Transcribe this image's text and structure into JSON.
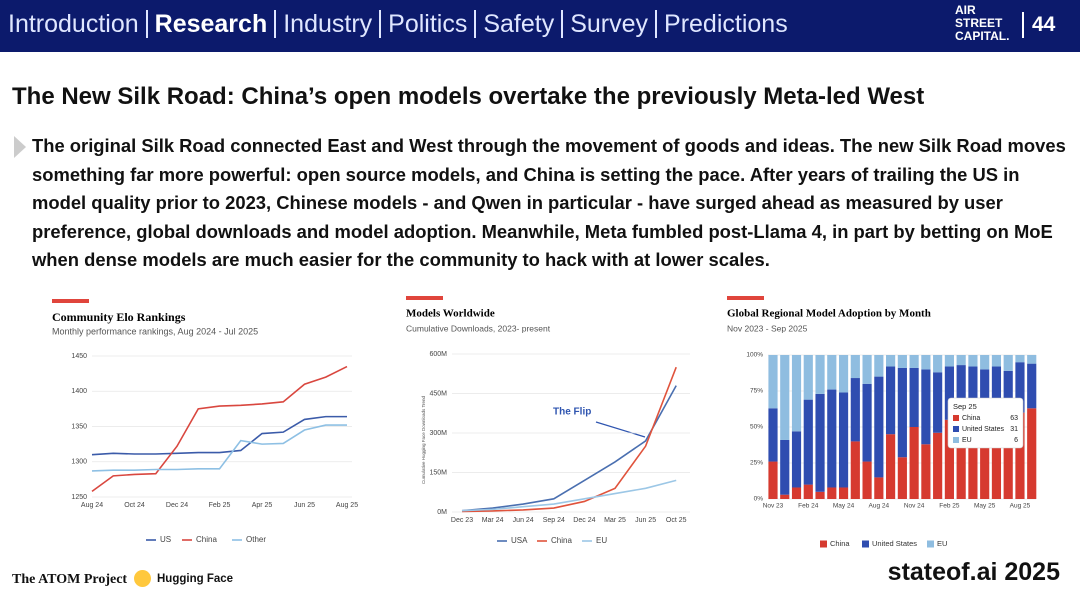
{
  "header": {
    "nav": [
      "Introduction",
      "Research",
      "Industry",
      "Politics",
      "Safety",
      "Survey",
      "Predictions"
    ],
    "logo": [
      "AIR",
      "STREET",
      "CAPITAL."
    ],
    "page": "44"
  },
  "title": "The New Silk Road: China’s open models overtake the previously Meta-led West",
  "body": "The original Silk Road connected East and West through the movement of goods and ideas. The new Silk Road moves something far more powerful: open source models, and China is setting the pace. After years of trailing the US in model quality prior to 2023, Chinese models - and Qwen in particular - have surged ahead as measured by user preference, global downloads and model adoption. Meanwhile, Meta fumbled post-Llama 4, in part by betting on MoE when dense models are much easier for the community to hack with at lower scales.",
  "chart_data": [
    {
      "type": "line",
      "title": "Community Elo Rankings",
      "subtitle": "Monthly performance rankings, Aug 2024 - Jul 2025",
      "categories": [
        "Aug 24",
        null,
        "Oct 24",
        null,
        "Dec 24",
        null,
        "Feb 25",
        null,
        "Apr 25",
        null,
        "Jun 25",
        null,
        "Aug 25"
      ],
      "series": [
        {
          "name": "US",
          "color": "#3b5ba9",
          "values": [
            1310,
            1312,
            1311,
            1311,
            1312,
            1313,
            1313,
            1316,
            1340,
            1342,
            1360,
            1364,
            1364
          ]
        },
        {
          "name": "China",
          "color": "#d9473f",
          "values": [
            1258,
            1280,
            1282,
            1283,
            1322,
            1375,
            1379,
            1380,
            1382,
            1385,
            1410,
            1420,
            1435
          ]
        },
        {
          "name": "Other",
          "color": "#8ec0e4",
          "values": [
            1287,
            1288,
            1288,
            1289,
            1289,
            1290,
            1290,
            1330,
            1325,
            1326,
            1345,
            1352,
            1352
          ]
        }
      ],
      "ylim": [
        1250,
        1450
      ],
      "yticks": [
        1250,
        1300,
        1350,
        1400,
        1450
      ],
      "grid": true
    },
    {
      "type": "line",
      "title": "Models Worldwide",
      "subtitle": "Cumulative Downloads, 2023- present",
      "ylabel": "Cumulative Hugging Face Downloads Trend",
      "annotation": "The Flip",
      "categories": [
        "Dec 23",
        "Mar 24",
        "Jun 24",
        "Sep 24",
        "Dec 24",
        "Mar 25",
        "Jun 25",
        "Oct 25"
      ],
      "series": [
        {
          "name": "USA",
          "color": "#4a6fb0",
          "values": [
            5,
            15,
            30,
            50,
            120,
            190,
            270,
            480
          ]
        },
        {
          "name": "China",
          "color": "#e0533c",
          "values": [
            2,
            4,
            8,
            15,
            40,
            90,
            250,
            550
          ]
        },
        {
          "name": "EU",
          "color": "#9cc7e6",
          "values": [
            5,
            10,
            20,
            30,
            50,
            70,
            90,
            120
          ]
        }
      ],
      "ylim": [
        0,
        600
      ],
      "yticks": [
        {
          "value": 0,
          "label": "0M"
        },
        {
          "value": 150,
          "label": "150M"
        },
        {
          "value": 300,
          "label": "300M"
        },
        {
          "value": 450,
          "label": "450M"
        },
        {
          "value": 600,
          "label": "600M"
        }
      ],
      "grid": true
    },
    {
      "type": "stacked_bar",
      "title": "Global Regional Model Adoption by Month",
      "subtitle": "Nov 2023 - Sep 2025",
      "categories": [
        "Nov 23",
        null,
        null,
        "Feb 24",
        null,
        null,
        "May 24",
        null,
        null,
        "Aug 24",
        null,
        null,
        "Nov 24",
        null,
        null,
        "Feb 25",
        null,
        null,
        "May 25",
        null,
        null,
        "Aug 25",
        null
      ],
      "series": [
        {
          "name": "China",
          "color": "#d63a2f",
          "values": [
            26,
            3,
            8,
            10,
            5,
            8,
            8,
            40,
            26,
            15,
            45,
            29,
            50,
            38,
            46,
            55,
            52,
            58,
            55,
            62,
            60,
            60,
            63
          ]
        },
        {
          "name": "United States",
          "color": "#2f4db0",
          "values": [
            37,
            38,
            39,
            59,
            68,
            68,
            66,
            44,
            54,
            70,
            47,
            62,
            41,
            52,
            42,
            37,
            41,
            34,
            35,
            30,
            29,
            35,
            31
          ]
        },
        {
          "name": "EU",
          "color": "#8fbde0",
          "values": [
            37,
            59,
            53,
            31,
            27,
            24,
            26,
            16,
            20,
            15,
            8,
            9,
            9,
            10,
            12,
            8,
            7,
            8,
            10,
            8,
            11,
            5,
            6
          ]
        }
      ],
      "tooltip": {
        "title": "Sep 25"
      },
      "ylim": [
        0,
        100
      ],
      "yticks": [
        {
          "value": 0,
          "label": "0%"
        },
        {
          "value": 25,
          "label": "25%"
        },
        {
          "value": 50,
          "label": "50%"
        },
        {
          "value": 75,
          "label": "75%"
        },
        {
          "value": 100,
          "label": "100%"
        }
      ],
      "grid": true
    }
  ],
  "footer": {
    "sources": [
      "The ATOM Project",
      "Hugging Face"
    ],
    "brand": "stateof.ai 2025"
  }
}
